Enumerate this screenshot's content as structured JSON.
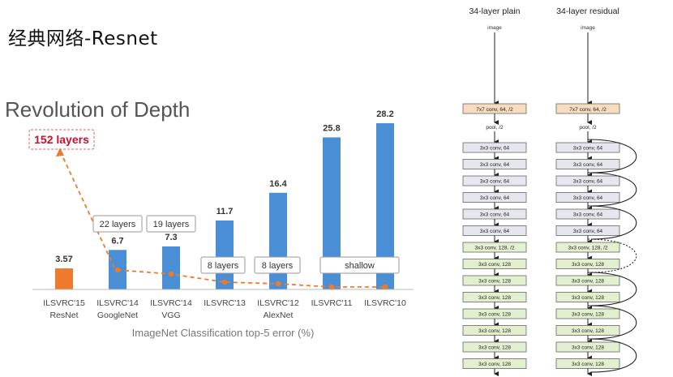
{
  "slide_title": "经典网络-Resnet",
  "chart_data": {
    "type": "bar",
    "title": "Revolution of Depth",
    "xlabel": "ImageNet Classification top-5 error (%)",
    "categories": [
      {
        "line1": "ILSVRC'15",
        "line2": "ResNet"
      },
      {
        "line1": "ILSVRC'14",
        "line2": "GoogleNet"
      },
      {
        "line1": "ILSVRC'14",
        "line2": "VGG"
      },
      {
        "line1": "ILSVRC'13",
        "line2": ""
      },
      {
        "line1": "ILSVRC'12",
        "line2": "AlexNet"
      },
      {
        "line1": "ILSVRC'11",
        "line2": ""
      },
      {
        "line1": "ILSVRC'10",
        "line2": ""
      }
    ],
    "values": [
      3.57,
      6.7,
      7.3,
      11.7,
      16.4,
      25.8,
      28.2
    ],
    "value_labels": [
      "3.57",
      "6.7",
      "7.3",
      "11.7",
      "16.4",
      "25.8",
      "28.2"
    ],
    "ylim": [
      0,
      30
    ],
    "colors": {
      "highlight": "#ee7a2c",
      "bar": "#4a8fd6",
      "trend": "#ee7a2c",
      "callout_text": "#c8102e",
      "callout_border": "#e06060"
    },
    "layer_callouts": [
      {
        "text": "152 layers",
        "category": 0
      },
      {
        "text": "22 layers",
        "category": 1
      },
      {
        "text": "19 layers",
        "category": 2
      },
      {
        "text": "8 layers",
        "category": 3
      },
      {
        "text": "8 layers",
        "category": 4
      },
      {
        "text": "shallow",
        "category": 5
      }
    ]
  },
  "networks": {
    "plain_title": "34-layer plain",
    "residual_title": "34-layer residual",
    "input_label": "image",
    "first_conv": "7x7 conv, 64, /2",
    "pool": "pool, /2",
    "layers": [
      "3x3 conv, 64",
      "3x3 conv, 64",
      "3x3 conv, 64",
      "3x3 conv, 64",
      "3x3 conv, 64",
      "3x3 conv, 64",
      "3x3 conv, 128, /2",
      "3x3 conv, 128",
      "3x3 conv, 128",
      "3x3 conv, 128",
      "3x3 conv, 128",
      "3x3 conv, 128",
      "3x3 conv, 128",
      "3x3 conv, 128"
    ],
    "colors": {
      "first_conv": "#f8dcc0",
      "conv64": "#e6e6ee",
      "conv128": "#e2f0d0",
      "border": "#666666"
    }
  }
}
